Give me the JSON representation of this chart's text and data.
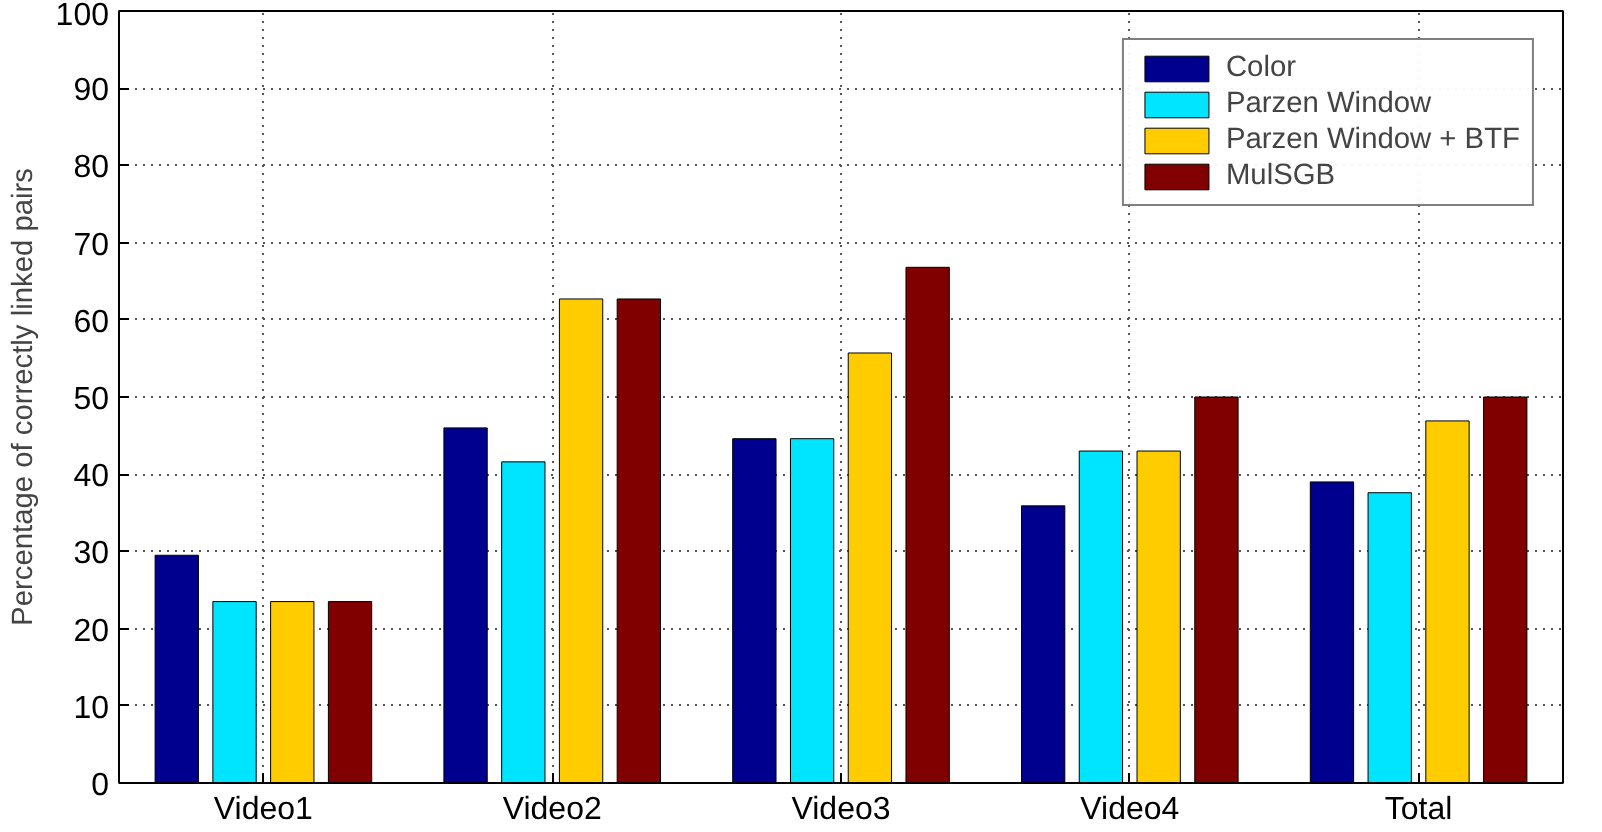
{
  "chart_data": {
    "type": "bar",
    "ylabel": "Percentage of correctly linked pairs",
    "categories": [
      "Video1",
      "Video2",
      "Video3",
      "Video4",
      "Total"
    ],
    "series": [
      {
        "name": "Color",
        "color": "#00008f",
        "values": [
          29.5,
          46,
          44.6,
          35.9,
          39
        ]
      },
      {
        "name": "Parzen Window",
        "color": "#00e5ff",
        "values": [
          23.5,
          41.6,
          44.6,
          43,
          37.6
        ]
      },
      {
        "name": "Parzen Window + BTF",
        "color": "#ffcc00",
        "values": [
          23.5,
          62.7,
          55.7,
          43,
          46.9
        ]
      },
      {
        "name": "MulSGB",
        "color": "#800000",
        "values": [
          23.5,
          62.7,
          66.8,
          50,
          50
        ]
      }
    ],
    "ylim": [
      0,
      100
    ],
    "yticks": [
      0,
      10,
      20,
      30,
      40,
      50,
      60,
      70,
      80,
      90,
      100
    ],
    "grid": true,
    "legend": "top right"
  }
}
